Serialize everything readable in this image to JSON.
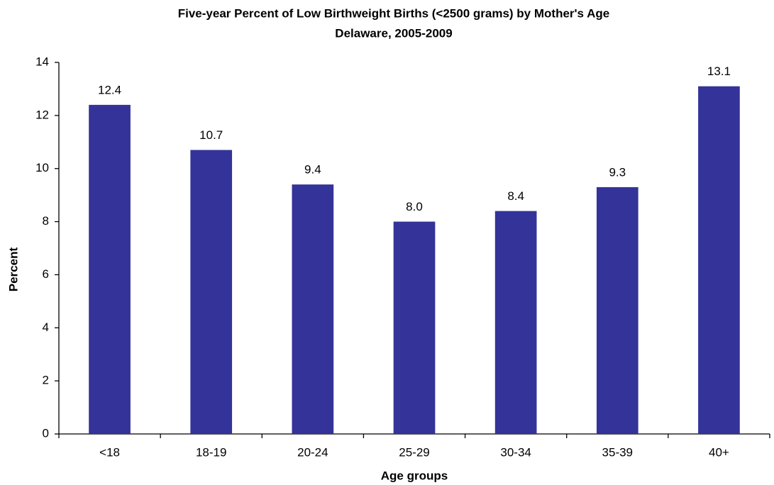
{
  "chart_data": {
    "type": "bar",
    "title": "Five-year Percent of Low Birthweight Births (<2500 grams) by Mother's Age",
    "subtitle": "Delaware, 2005-2009",
    "x_label": "Age groups",
    "y_label": "Percent",
    "categories": [
      "<18",
      "18-19",
      "20-24",
      "25-29",
      "30-34",
      "35-39",
      "40+"
    ],
    "values": [
      12.4,
      10.7,
      9.4,
      8.0,
      8.4,
      9.3,
      13.1
    ],
    "value_labels": [
      "12.4",
      "10.7",
      "9.4",
      "8.0",
      "8.4",
      "9.3",
      "13.1"
    ],
    "color": "#333399",
    "ylim": [
      0,
      14
    ],
    "yticks": [
      0,
      2,
      4,
      6,
      8,
      10,
      12,
      14
    ],
    "grid": false
  }
}
